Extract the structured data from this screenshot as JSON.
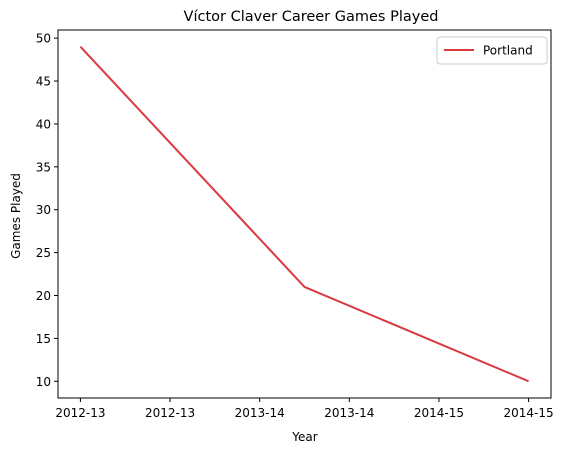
{
  "chart_data": {
    "type": "line",
    "title": "Víctor Claver Career Games Played",
    "xlabel": "Year",
    "ylabel": "Games Played",
    "x": [
      0,
      1,
      2
    ],
    "x_labels": [
      "2012-13",
      "2013-14",
      "2014-15"
    ],
    "x_ticks": [
      {
        "pos": 0.0,
        "label": "2012-13"
      },
      {
        "pos": 0.4,
        "label": "2012-13"
      },
      {
        "pos": 0.8,
        "label": "2013-14"
      },
      {
        "pos": 1.2,
        "label": "2013-14"
      },
      {
        "pos": 1.6,
        "label": "2014-15"
      },
      {
        "pos": 2.0,
        "label": "2014-15"
      }
    ],
    "xlim": [
      -0.1,
      2.1
    ],
    "ylim": [
      8.05,
      50.95
    ],
    "y_ticks": [
      10,
      15,
      20,
      25,
      30,
      35,
      40,
      45,
      50
    ],
    "series": [
      {
        "name": "Portland",
        "values": [
          49,
          21,
          10
        ],
        "color": "#d93a40"
      }
    ],
    "legend_position": "top-right",
    "grid": false
  }
}
